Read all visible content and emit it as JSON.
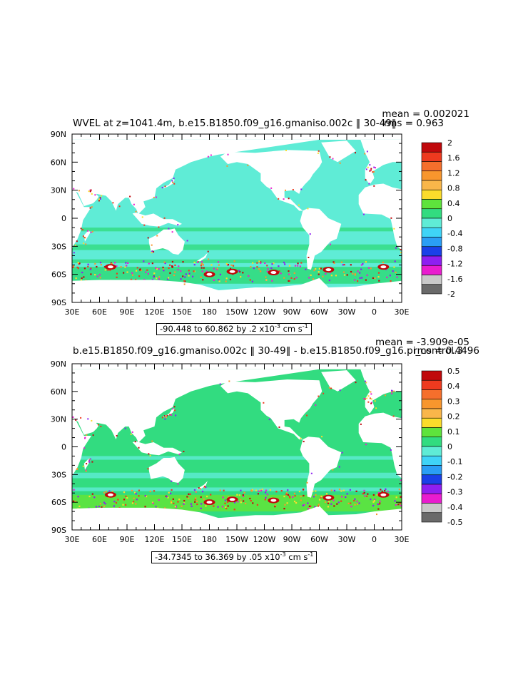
{
  "panels": [
    {
      "title": "WVEL at z=1041.4m, b.e15.B1850.f09_g16.gmaniso.002c ‖ 30-49‖",
      "mean": "mean = 0.002021",
      "rms": "rms = 0.963",
      "range": "-90.448 to 60.862 by .2 x10",
      "range_exp": "-3",
      "range_units": " cm s",
      "range_units_exp": "-1",
      "colorbar_labels": [
        "2",
        "1.6",
        "1.2",
        "0.8",
        "0.4",
        "0",
        "-0.4",
        "-0.8",
        "-1.2",
        "-1.6",
        "-2"
      ],
      "colorbar_colors": [
        "#c0090c",
        "#ee3a1f",
        "#f56f2c",
        "#f8962d",
        "#f9b64a",
        "#fbdc2b",
        "#5ee33c",
        "#32dc80",
        "#5fecd6",
        "#3fd4f7",
        "#2a9ef5",
        "#1a40e8",
        "#8e1ff1",
        "#e91ccf",
        "#c9c9c9",
        "#6a6a6a"
      ],
      "lat_labels": [
        "90N",
        "60N",
        "30N",
        "0",
        "30S",
        "60S",
        "90S"
      ],
      "lon_labels": [
        "30E",
        "60E",
        "90E",
        "120E",
        "150E",
        "180",
        "150W",
        "120W",
        "90W",
        "60W",
        "30W",
        "0",
        "30E"
      ]
    },
    {
      "title": "b.e15.B1850.f09_g16.gmaniso.002c ‖ 30-49‖ - b.e15.B1850.f09_g16.pi_control.3",
      "mean": "mean = -3.909e-05",
      "rms": "rms = 0.4496",
      "range": "-34.7345 to 36.369 by .05 x10",
      "range_exp": "-3",
      "range_units": " cm s",
      "range_units_exp": "-1",
      "colorbar_labels": [
        "0.5",
        "0.4",
        "0.3",
        "0.2",
        "0.1",
        "0",
        "-0.1",
        "-0.2",
        "-0.3",
        "-0.4",
        "-0.5"
      ],
      "colorbar_colors": [
        "#c0090c",
        "#ee3a1f",
        "#f56f2c",
        "#f8962d",
        "#f9b64a",
        "#fbdc2b",
        "#5ee33c",
        "#32dc80",
        "#5fecd6",
        "#3fd4f7",
        "#2a9ef5",
        "#1a40e8",
        "#8e1ff1",
        "#e91ccf",
        "#c9c9c9",
        "#6a6a6a"
      ],
      "lat_labels": [
        "90N",
        "60N",
        "30N",
        "0",
        "30S",
        "60S",
        "90S"
      ],
      "lon_labels": [
        "30E",
        "60E",
        "90E",
        "120E",
        "150E",
        "180",
        "150W",
        "120W",
        "90W",
        "60W",
        "30W",
        "0",
        "30E"
      ]
    }
  ],
  "chart_data": [
    {
      "type": "heatmap",
      "title": "WVEL at z=1041.4m, b.e15.B1850.f09_g16.gmaniso.002c ‖ 30-49‖",
      "ylim": [
        -90,
        90
      ],
      "xlim": [
        30,
        390
      ],
      "zlim": [
        -2,
        2
      ],
      "levels": [
        -2,
        -1.6,
        -1.2,
        -0.8,
        -0.4,
        0,
        0.4,
        0.8,
        1.2,
        1.6,
        2
      ],
      "ocean_background_value": -0.2,
      "grid": false,
      "legend": "right"
    },
    {
      "type": "heatmap",
      "title": "b.e15.B1850.f09_g16.gmaniso.002c ‖ 30-49‖ - b.e15.B1850.f09_g16.pi_control.3",
      "ylim": [
        -90,
        90
      ],
      "xlim": [
        30,
        390
      ],
      "zlim": [
        -0.5,
        0.5
      ],
      "levels": [
        -0.5,
        -0.4,
        -0.3,
        -0.2,
        -0.1,
        0,
        0.1,
        0.2,
        0.3,
        0.4,
        0.5
      ],
      "ocean_background_value": 0.05,
      "grid": false,
      "legend": "right"
    }
  ]
}
